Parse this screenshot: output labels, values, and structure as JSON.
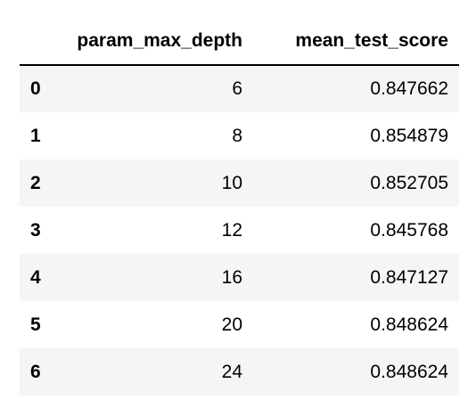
{
  "table": {
    "columns": [
      "param_max_depth",
      "mean_test_score"
    ],
    "rows": [
      {
        "index": "0",
        "param_max_depth": "6",
        "mean_test_score": "0.847662"
      },
      {
        "index": "1",
        "param_max_depth": "8",
        "mean_test_score": "0.854879"
      },
      {
        "index": "2",
        "param_max_depth": "10",
        "mean_test_score": "0.852705"
      },
      {
        "index": "3",
        "param_max_depth": "12",
        "mean_test_score": "0.845768"
      },
      {
        "index": "4",
        "param_max_depth": "16",
        "mean_test_score": "0.847127"
      },
      {
        "index": "5",
        "param_max_depth": "20",
        "mean_test_score": "0.848624"
      },
      {
        "index": "6",
        "param_max_depth": "24",
        "mean_test_score": "0.848624"
      }
    ]
  },
  "colors": {
    "stripe": "#f5f5f5",
    "header_rule": "#000000",
    "text": "#000000"
  }
}
